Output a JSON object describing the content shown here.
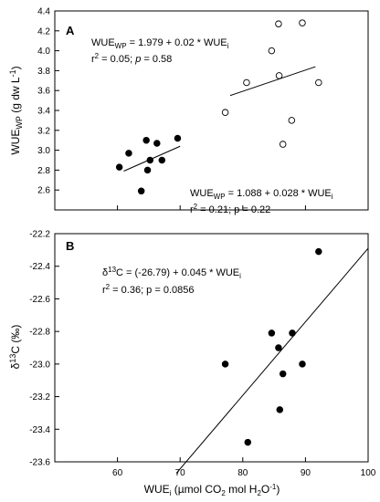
{
  "chart_data": [
    {
      "type": "scatter",
      "panel_label": "A",
      "ylabel": "WUEWP (g dw L-1)",
      "ylabel_parts": {
        "main": "WUE",
        "sub": "WP",
        "rest": " (g dw L",
        "sup": "-1",
        "end": ")"
      },
      "xlim": [
        50,
        100
      ],
      "ylim": [
        2.4,
        4.4
      ],
      "yticks": [
        2.6,
        2.8,
        3.0,
        3.2,
        3.4,
        3.6,
        3.8,
        4.0,
        4.2,
        4.4
      ],
      "ytick_labels": [
        "2.6",
        "2.8",
        "3.0",
        "3.2",
        "3.4",
        "3.6",
        "3.8",
        "4.0",
        "4.2",
        "4.4"
      ],
      "series": [
        {
          "marker": "filled-circle",
          "x": [
            60.3,
            61.8,
            63.8,
            64.6,
            64.8,
            65.2,
            66.3,
            67.1,
            69.6
          ],
          "y": [
            2.83,
            2.97,
            2.59,
            3.1,
            2.8,
            2.9,
            3.07,
            2.9,
            3.12
          ],
          "fit": {
            "x": [
              61.0,
              70.0
            ],
            "y": [
              2.79,
              3.04
            ]
          }
        },
        {
          "marker": "open-circle",
          "x": [
            77.2,
            80.6,
            84.6,
            85.7,
            85.8,
            86.4,
            87.8,
            89.5,
            92.1
          ],
          "y": [
            3.38,
            3.68,
            4.0,
            4.27,
            3.75,
            3.06,
            3.3,
            4.28,
            3.68
          ],
          "fit": {
            "x": [
              78.0,
              91.6
            ],
            "y": [
              3.55,
              3.84
            ]
          }
        }
      ],
      "annotations": [
        {
          "main": "WUE",
          "sub": "WP",
          "rest": " = 1.979 + 0.02 * WUE",
          "sub2": "i"
        },
        {
          "text": "r",
          "sup": "2",
          "rest": " = 0.05; ",
          "ital": "p",
          "end": " = 0.58"
        },
        {
          "main": "WUE",
          "sub": "WP",
          "rest": " = 1.088 + 0.028 * WUE",
          "sub2": "i"
        },
        {
          "text": "r",
          "sup": "2",
          "rest": " = 0.21; p = 0.22"
        }
      ]
    },
    {
      "type": "scatter",
      "panel_label": "B",
      "ylabel": "δ13C (‰)",
      "ylabel_parts": {
        "pre": "δ",
        "sup": "13",
        "rest": "C (‰)"
      },
      "xlabel": "WUEi (µmol CO2 mol H2O-1)",
      "xlabel_parts": {
        "a": "WUE",
        "a_sub": "i",
        "b": " (µmol CO",
        "b_sub": "2",
        "c": " mol H",
        "c_sub": "2",
        "d": "O",
        "d_sup": "-1",
        "e": ")"
      },
      "xlim": [
        50,
        100
      ],
      "ylim": [
        -23.6,
        -22.2
      ],
      "xticks": [
        60,
        70,
        80,
        90,
        100
      ],
      "xtick_labels": [
        "60",
        "70",
        "80",
        "90",
        "100"
      ],
      "yticks": [
        -23.6,
        -23.4,
        -23.2,
        -23.0,
        -22.8,
        -22.6,
        -22.4,
        -22.2
      ],
      "ytick_labels": [
        "-23.6",
        "-23.4",
        "-23.2",
        "-23.0",
        "-22.8",
        "-22.6",
        "-22.4",
        "-22.2"
      ],
      "series": [
        {
          "marker": "filled-circle",
          "x": [
            77.2,
            80.8,
            84.6,
            85.7,
            85.9,
            86.4,
            87.9,
            89.5,
            92.1
          ],
          "y": [
            -23.0,
            -23.48,
            -22.81,
            -22.9,
            -23.28,
            -23.06,
            -22.81,
            -23.0,
            -22.31
          ],
          "fit": {
            "x": [
              69.4,
              100.0
            ],
            "y": [
              -23.67,
              -22.29
            ]
          }
        }
      ],
      "annotations": [
        {
          "pre": "δ",
          "sup": "13",
          "rest": "C = (-26.79) + 0.045 * WUE",
          "sub2": "i"
        },
        {
          "text": "r",
          "sup": "2",
          "rest": " = 0.36; p = 0.0856"
        }
      ]
    }
  ]
}
